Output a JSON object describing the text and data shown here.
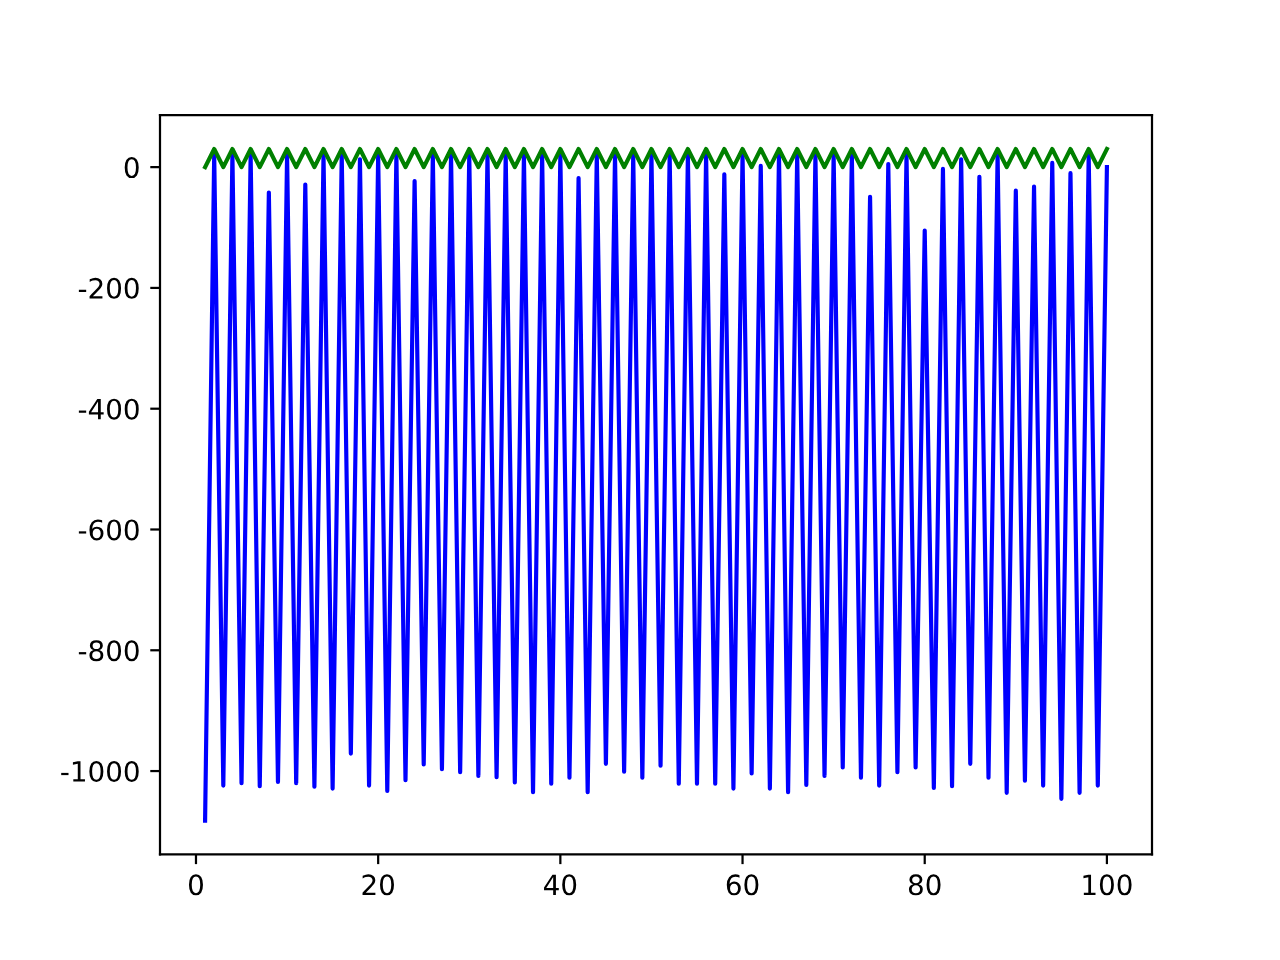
{
  "chart_data": {
    "type": "line",
    "x": [
      1,
      2,
      3,
      4,
      5,
      6,
      7,
      8,
      9,
      10,
      11,
      12,
      13,
      14,
      15,
      16,
      17,
      18,
      19,
      20,
      21,
      22,
      23,
      24,
      25,
      26,
      27,
      28,
      29,
      30,
      31,
      32,
      33,
      34,
      35,
      36,
      37,
      38,
      39,
      40,
      41,
      42,
      43,
      44,
      45,
      46,
      47,
      48,
      49,
      50,
      51,
      52,
      53,
      54,
      55,
      56,
      57,
      58,
      59,
      60,
      61,
      62,
      63,
      64,
      65,
      66,
      67,
      68,
      69,
      70,
      71,
      72,
      73,
      74,
      75,
      76,
      77,
      78,
      79,
      80,
      81,
      82,
      83,
      84,
      85,
      86,
      87,
      88,
      89,
      90,
      91,
      92,
      93,
      94,
      95,
      96,
      97,
      98,
      99,
      100
    ],
    "series": [
      {
        "color": "#0000ff",
        "values": [
          -1082,
          20,
          -1024,
          20,
          -1020,
          20,
          -1025,
          -42,
          -1018,
          20,
          -1020,
          -29,
          -1026,
          20,
          -1029,
          20,
          -971,
          13,
          -1024,
          20,
          -1033,
          20,
          -1015,
          -23,
          -989,
          20,
          -997,
          20,
          -1002,
          20,
          -1008,
          20,
          -1010,
          20,
          -1019,
          20,
          -1035,
          20,
          -1021,
          20,
          -1011,
          -18,
          -1035,
          20,
          -988,
          20,
          -1001,
          20,
          -1011,
          20,
          -991,
          20,
          -1021,
          20,
          -1021,
          20,
          -1021,
          -12,
          -1029,
          20,
          -1004,
          2,
          -1029,
          20,
          -1035,
          20,
          -1023,
          20,
          -1008,
          20,
          -994,
          20,
          -1011,
          -49,
          -1024,
          5,
          -1002,
          20,
          -994,
          -105,
          -1028,
          -3,
          -1025,
          13,
          -988,
          -16,
          -1011,
          20,
          -1036,
          -39,
          -1016,
          -32,
          -1024,
          7,
          -1046,
          -10,
          -1036,
          20,
          -1024,
          0
        ]
      },
      {
        "color": "#008000",
        "values": [
          0,
          30,
          0,
          30,
          0,
          30,
          0,
          30,
          0,
          30,
          0,
          30,
          0,
          30,
          0,
          30,
          0,
          30,
          0,
          30,
          0,
          30,
          0,
          30,
          0,
          30,
          0,
          30,
          0,
          30,
          0,
          30,
          0,
          30,
          0,
          30,
          0,
          30,
          0,
          30,
          0,
          30,
          0,
          30,
          0,
          30,
          0,
          30,
          0,
          30,
          0,
          30,
          0,
          30,
          0,
          30,
          0,
          30,
          0,
          30,
          0,
          30,
          0,
          30,
          0,
          30,
          0,
          30,
          0,
          30,
          0,
          30,
          0,
          30,
          0,
          30,
          0,
          30,
          0,
          30,
          0,
          30,
          0,
          30,
          0,
          30,
          0,
          30,
          0,
          30,
          0,
          30,
          0,
          30,
          0,
          30,
          0,
          30,
          0,
          30
        ]
      }
    ],
    "xlim": [
      -3.95,
      104.95
    ],
    "ylim": [
      -1138,
      86
    ],
    "xticks": [
      0,
      20,
      40,
      60,
      80,
      100
    ],
    "yticks": [
      -1000,
      -800,
      -600,
      -400,
      -200,
      0
    ],
    "grid": false,
    "legend": false
  }
}
